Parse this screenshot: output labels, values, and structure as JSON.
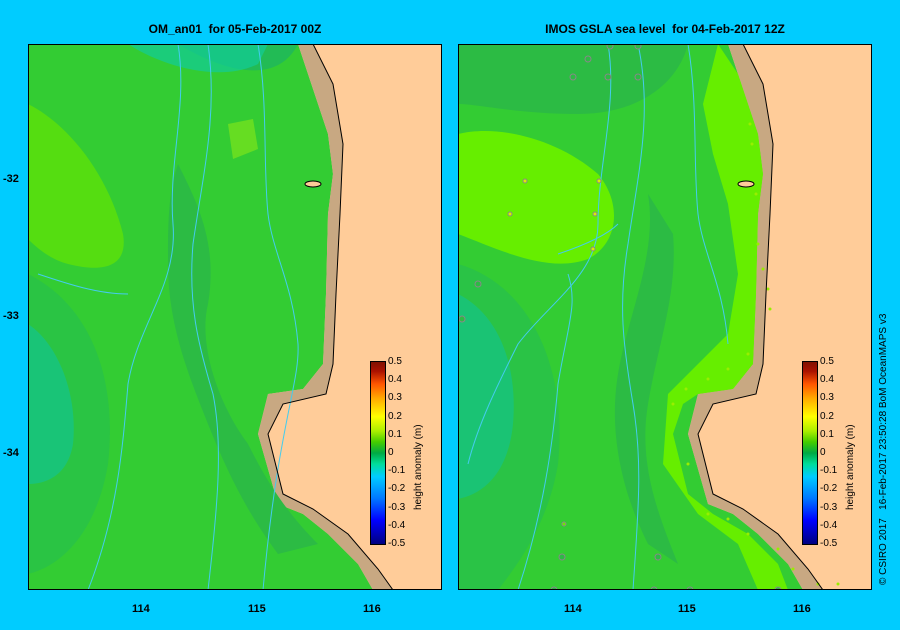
{
  "left_panel": {
    "title": "OM_an01  for 05-Feb-2017 00Z"
  },
  "right_panel": {
    "title": "IMOS GSLA sea level  for 04-Feb-2017 12Z"
  },
  "axes": {
    "x_ticks": [
      "114",
      "115",
      "116"
    ],
    "y_ticks": [
      "-32",
      "-33",
      "-34"
    ]
  },
  "colorbar": {
    "label": "height anomaly (m)",
    "ticks": [
      "0.5",
      "0.4",
      "0.3",
      "0.2",
      "0.1",
      "0",
      "-0.1",
      "-0.2",
      "-0.3",
      "-0.4",
      "-0.5"
    ]
  },
  "credit": "© CSIRO 2017   16-Feb-2017 23:50:28 BoM OceanMAPS v3",
  "colors": {
    "background": "#00ccff",
    "land": "#ffcc99",
    "shelf": "#c8a882",
    "contour_light_green": "#66ee00",
    "contour_green": "#33cc33",
    "contour_dark_green": "#22bb55",
    "contour_teal": "#11cc99",
    "bathymetry_lines": "#44ccee"
  }
}
